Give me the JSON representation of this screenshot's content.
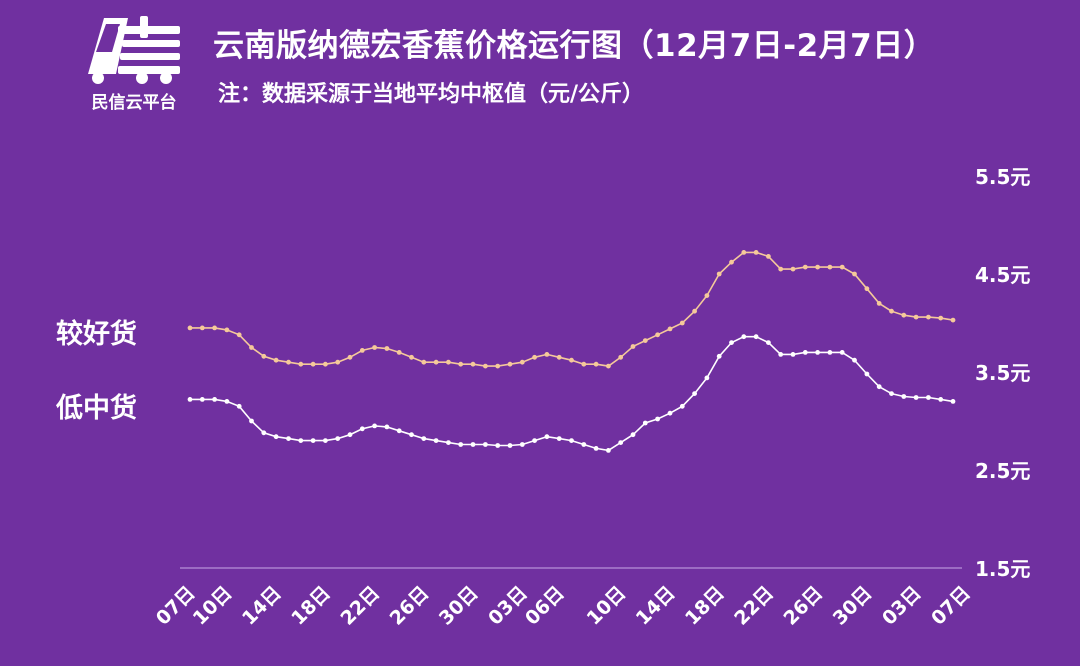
{
  "header": {
    "title": "云南版纳德宏香蕉价格运行图（12月7日-2月7日）",
    "subtitle": "注：数据采源于当地平均中枢值（元/公斤）",
    "logo_text": "民信云平台"
  },
  "colors": {
    "background": "#7030a0",
    "good_line": "#f5c99a",
    "low_line": "#ffffff",
    "text": "#ffffff"
  },
  "chart_data": {
    "type": "line",
    "title": "云南版纳德宏香蕉价格运行图（12月7日-2月7日）",
    "ylabel": "元/公斤",
    "ylim": [
      1.5,
      5.5
    ],
    "yticks": [
      "5.5元",
      "4.5元",
      "3.5元",
      "2.5元",
      "1.5元"
    ],
    "ytick_values": [
      5.5,
      4.5,
      3.5,
      2.5,
      1.5
    ],
    "xtick_labels": [
      "07日",
      "10日",
      "14日",
      "18日",
      "22日",
      "26日",
      "30日",
      "03日",
      "06日",
      "10日",
      "14日",
      "18日",
      "22日",
      "26日",
      "30日",
      "03日",
      "07日"
    ],
    "xtick_index": [
      0,
      3,
      7,
      11,
      15,
      19,
      23,
      27,
      30,
      35,
      39,
      43,
      47,
      51,
      55,
      59,
      63
    ],
    "series": [
      {
        "name": "较好货",
        "values": [
          3.95,
          3.95,
          3.95,
          3.93,
          3.88,
          3.75,
          3.66,
          3.62,
          3.6,
          3.58,
          3.58,
          3.58,
          3.6,
          3.65,
          3.72,
          3.75,
          3.74,
          3.7,
          3.65,
          3.6,
          3.6,
          3.6,
          3.58,
          3.58,
          3.56,
          3.56,
          3.58,
          3.6,
          3.65,
          3.68,
          3.65,
          3.62,
          3.58,
          3.58,
          3.56,
          3.65,
          3.76,
          3.82,
          3.88,
          3.94,
          4.0,
          4.12,
          4.28,
          4.5,
          4.62,
          4.72,
          4.72,
          4.68,
          4.55,
          4.55,
          4.57,
          4.57,
          4.57,
          4.57,
          4.5,
          4.35,
          4.2,
          4.12,
          4.08,
          4.06,
          4.06,
          4.05,
          4.03
        ]
      },
      {
        "name": "低中货",
        "values": [
          3.22,
          3.22,
          3.22,
          3.2,
          3.15,
          3.0,
          2.88,
          2.84,
          2.82,
          2.8,
          2.8,
          2.8,
          2.82,
          2.86,
          2.92,
          2.95,
          2.94,
          2.9,
          2.86,
          2.82,
          2.8,
          2.78,
          2.76,
          2.76,
          2.76,
          2.75,
          2.75,
          2.76,
          2.8,
          2.84,
          2.82,
          2.8,
          2.76,
          2.72,
          2.7,
          2.78,
          2.86,
          2.98,
          3.02,
          3.08,
          3.15,
          3.28,
          3.44,
          3.66,
          3.8,
          3.86,
          3.86,
          3.8,
          3.68,
          3.68,
          3.7,
          3.7,
          3.7,
          3.7,
          3.62,
          3.48,
          3.35,
          3.28,
          3.25,
          3.24,
          3.24,
          3.22,
          3.2
        ]
      }
    ]
  }
}
